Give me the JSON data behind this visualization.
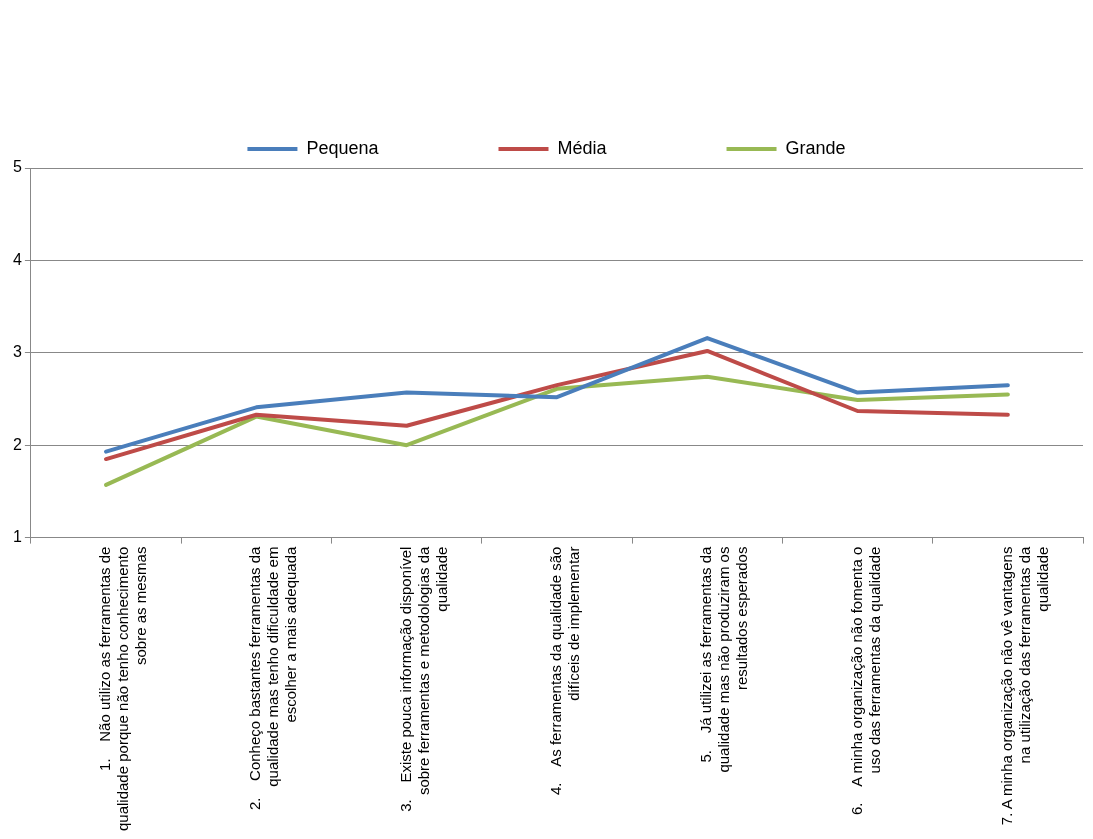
{
  "chart_data": {
    "type": "line",
    "categories": [
      "1.    Não utilizo as ferramentas de qualidade porque não tenho conhecimento sobre as mesmas",
      "2.    Conheço bastantes ferramentas da qualidade mas tenho dificuldade em escolher a mais adequada",
      "3.    Existe pouca informação disponível sobre ferramentas e metodologias da qualidade",
      "4.    As ferramentas da qualidade são difíceis de implementar",
      "5.    Já utilizei as ferramentas da qualidade mas não produziram os resultados esperados",
      "6.    A minha organização não fomenta o uso das ferramentas da qualidade",
      "7. A minha organização não vê vantagens na utilização das ferramentas da qualidade"
    ],
    "series": [
      {
        "name": "Pequena",
        "color": "#4a7ebb",
        "values": [
          1.93,
          2.41,
          2.57,
          2.52,
          3.16,
          2.57,
          2.65
        ]
      },
      {
        "name": "Média",
        "color": "#be4b48",
        "values": [
          1.85,
          2.33,
          2.21,
          2.65,
          3.02,
          2.37,
          2.33
        ]
      },
      {
        "name": "Grande",
        "color": "#98b954",
        "values": [
          1.57,
          2.31,
          2.0,
          2.61,
          2.74,
          2.49,
          2.55
        ]
      }
    ],
    "ylim": [
      1,
      5
    ],
    "yticks": [
      1,
      2,
      3,
      4,
      5
    ],
    "grid": "y",
    "legend": "top",
    "marker": "none",
    "line_style": "solid"
  }
}
